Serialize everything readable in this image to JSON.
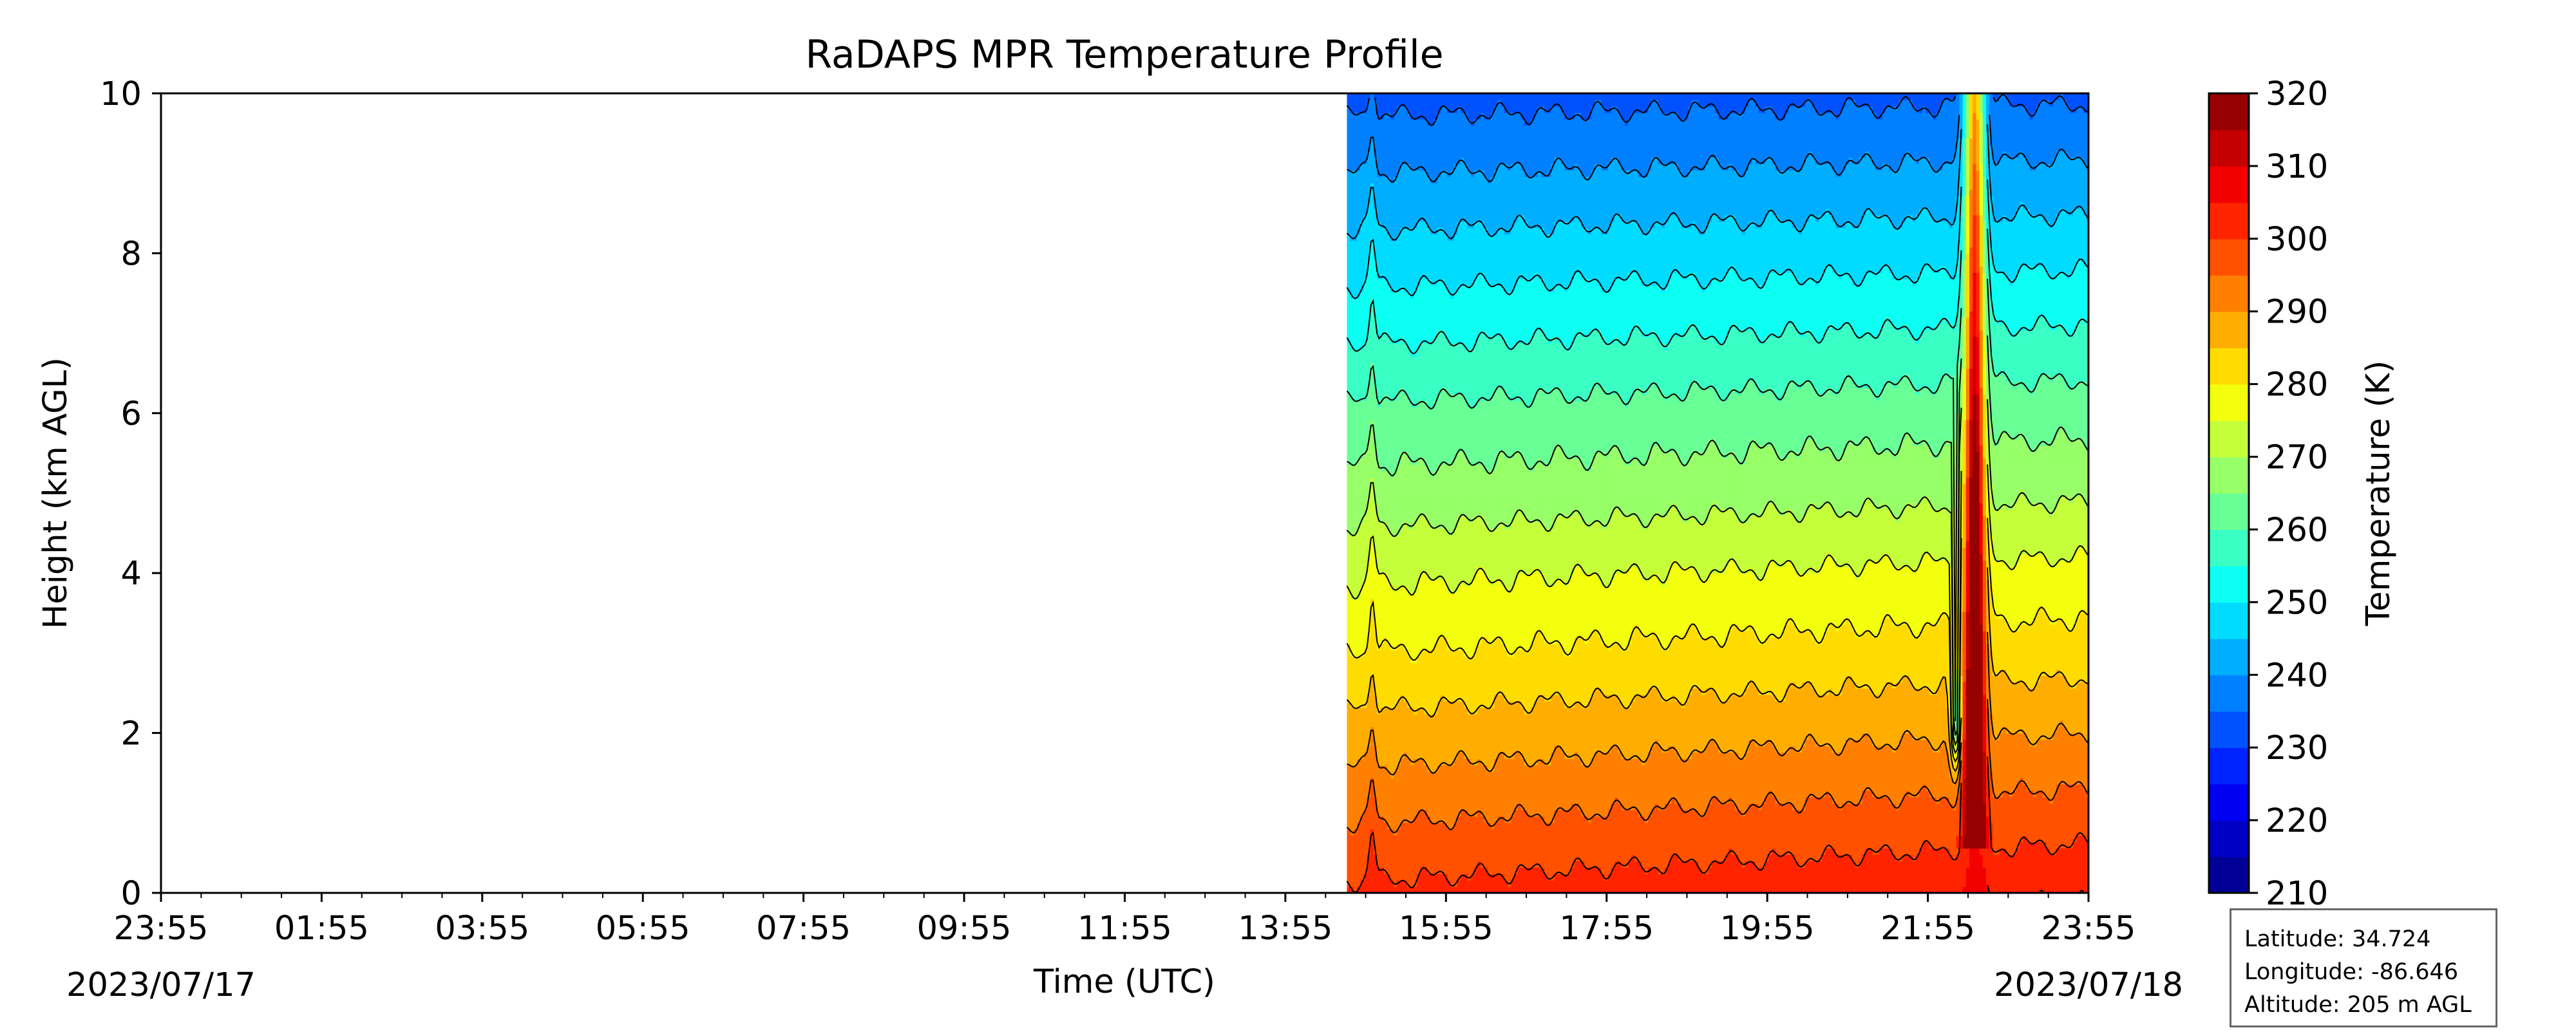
{
  "chart_data": {
    "type": "heatmap",
    "subtype": "filled-contour",
    "title": "RaDAPS MPR Temperature Profile",
    "xlabel": "Time (UTC)",
    "ylabel": "Height (km AGL)",
    "x_tick_labels": [
      "23:55",
      "01:55",
      "03:55",
      "05:55",
      "07:55",
      "09:55",
      "11:55",
      "13:55",
      "15:55",
      "17:55",
      "19:55",
      "21:55",
      "23:55"
    ],
    "date_labels": [
      "2023/07/17",
      "2023/07/18"
    ],
    "xlim": [
      "2023-07-17 23:55",
      "2023-07-18 23:55"
    ],
    "ylim": [
      0,
      10
    ],
    "y_ticks": [
      0,
      2,
      4,
      6,
      8,
      10
    ],
    "data_start_time": "2023-07-18 14:41",
    "data_end_time": "2023-07-18 23:55",
    "colorbar": {
      "label": "Temperature (K)",
      "min": 210,
      "max": 320,
      "level_step": 5,
      "ticks": [
        210,
        220,
        230,
        240,
        250,
        260,
        270,
        280,
        290,
        300,
        310,
        320
      ],
      "colormap": "jet"
    },
    "profile_at_start": [
      {
        "height_km": 0,
        "temperature_K": 301
      },
      {
        "height_km": 1,
        "temperature_K": 294
      },
      {
        "height_km": 2,
        "temperature_K": 287
      },
      {
        "height_km": 3,
        "temperature_K": 280
      },
      {
        "height_km": 4,
        "temperature_K": 274
      },
      {
        "height_km": 5,
        "temperature_K": 267
      },
      {
        "height_km": 6,
        "temperature_K": 261
      },
      {
        "height_km": 7,
        "temperature_K": 254
      },
      {
        "height_km": 8,
        "temperature_K": 247
      },
      {
        "height_km": 9,
        "temperature_K": 240
      },
      {
        "height_km": 10,
        "temperature_K": 233
      }
    ],
    "features": [
      {
        "time": "2023-07-18 15:00",
        "description": "narrow warm spike through the full column"
      },
      {
        "time": "2023-07-18 22:30",
        "description": "strong warm anomaly (>320 K) through the full column, cool pocket near 2 km"
      }
    ],
    "grid": false
  },
  "info_box": {
    "latitude": "Latitude: 34.724",
    "longitude": "Longitude: -86.646",
    "altitude": "Altitude: 205 m AGL"
  }
}
